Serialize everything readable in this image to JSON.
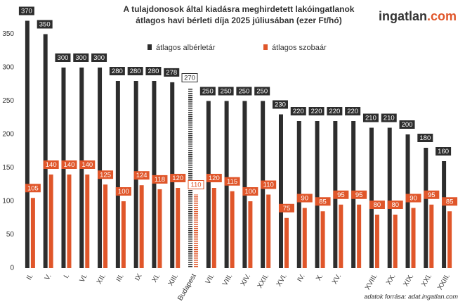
{
  "chart_data": {
    "type": "bar",
    "title": [
      "A tulajdonosok által kiadásra meghirdetett lakóingatlanok",
      "átlagos havi bérleti díja 2025 júliusában (ezer Ft/hó)"
    ],
    "brand": [
      "ingatlan",
      ".com"
    ],
    "source": "adatok forrása: adat.ingatlan.com",
    "categories": [
      "II.",
      "V.",
      "I.",
      "VI.",
      "XII.",
      "III.",
      "IX",
      "XI.",
      "XIII.",
      "Budapest",
      "VII.",
      "VIII.",
      "XIV.",
      "XXII.",
      "XVI.",
      "IV.",
      "X.",
      "XV.",
      null,
      "XVIII.",
      "XX.",
      "XIX.",
      "XXI.",
      "XXIII."
    ],
    "highlight": "Budapest",
    "series": [
      {
        "name": "átlagos albérletár",
        "color": "#2d2d2d",
        "values": [
          370,
          350,
          300,
          300,
          300,
          280,
          280,
          280,
          278,
          270,
          250,
          250,
          250,
          250,
          230,
          220,
          220,
          220,
          220,
          210,
          210,
          200,
          180,
          160
        ]
      },
      {
        "name": "átlagos szobaár",
        "color": "#e0562a",
        "values": [
          105,
          140,
          140,
          140,
          125,
          100,
          124,
          118,
          120,
          110,
          120,
          115,
          100,
          110,
          75,
          90,
          85,
          95,
          95,
          80,
          80,
          90,
          95,
          85
        ]
      }
    ],
    "ylim": [
      0,
      380
    ],
    "yticks": [
      0,
      50,
      100,
      150,
      200,
      250,
      300,
      350
    ],
    "grid": false
  }
}
